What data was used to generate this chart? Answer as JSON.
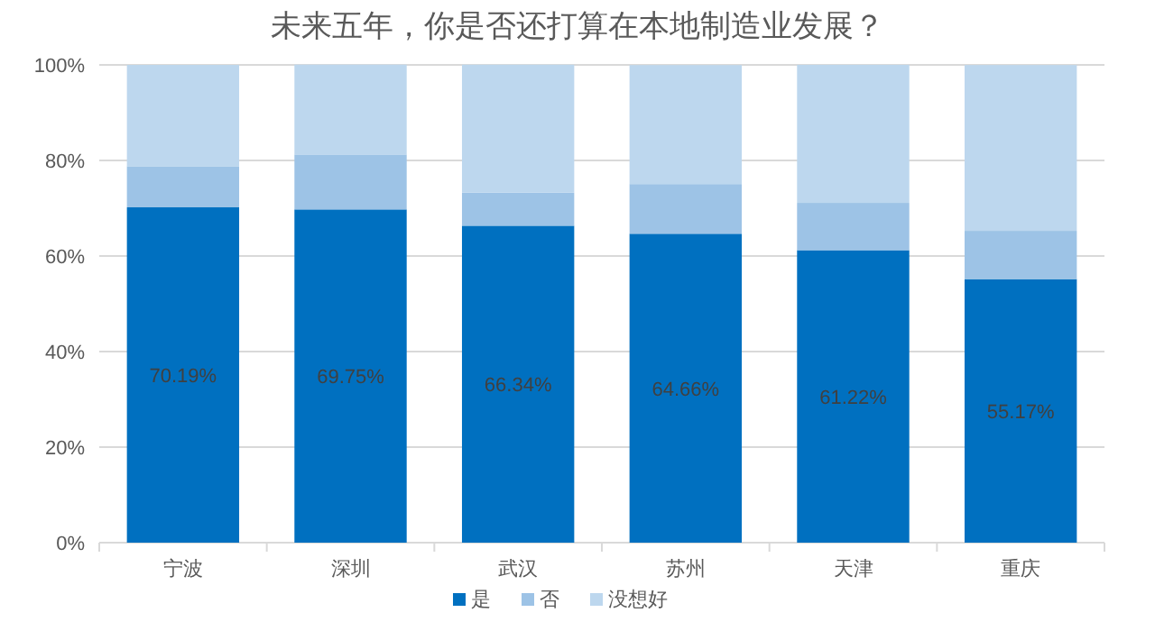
{
  "chart_data": {
    "type": "bar",
    "stacked": true,
    "title": "未来五年，你是否还打算在本地制造业发展？",
    "categories": [
      "宁波",
      "深圳",
      "武汉",
      "苏州",
      "天津",
      "重庆"
    ],
    "series": [
      {
        "name": "是",
        "color": "#0070c0",
        "values": [
          70.19,
          69.75,
          66.34,
          64.66,
          61.22,
          55.17
        ],
        "value_labels": [
          "70.19%",
          "69.75%",
          "66.34%",
          "64.66%",
          "61.22%",
          "55.17%"
        ]
      },
      {
        "name": "否",
        "color": "#9dc3e6",
        "values": [
          8.6,
          11.5,
          6.9,
          10.4,
          9.9,
          10.1
        ]
      },
      {
        "name": "没想好",
        "color": "#bdd7ee",
        "values": [
          21.2,
          18.8,
          26.8,
          24.9,
          28.9,
          34.7
        ]
      }
    ],
    "ylim": [
      0,
      100
    ],
    "yticks": [
      {
        "value": 0,
        "label": "0%"
      },
      {
        "value": 20,
        "label": "20%"
      },
      {
        "value": 40,
        "label": "40%"
      },
      {
        "value": 60,
        "label": "60%"
      },
      {
        "value": 80,
        "label": "80%"
      },
      {
        "value": 100,
        "label": "100%"
      }
    ],
    "grid": "y",
    "legend": "bottom"
  }
}
